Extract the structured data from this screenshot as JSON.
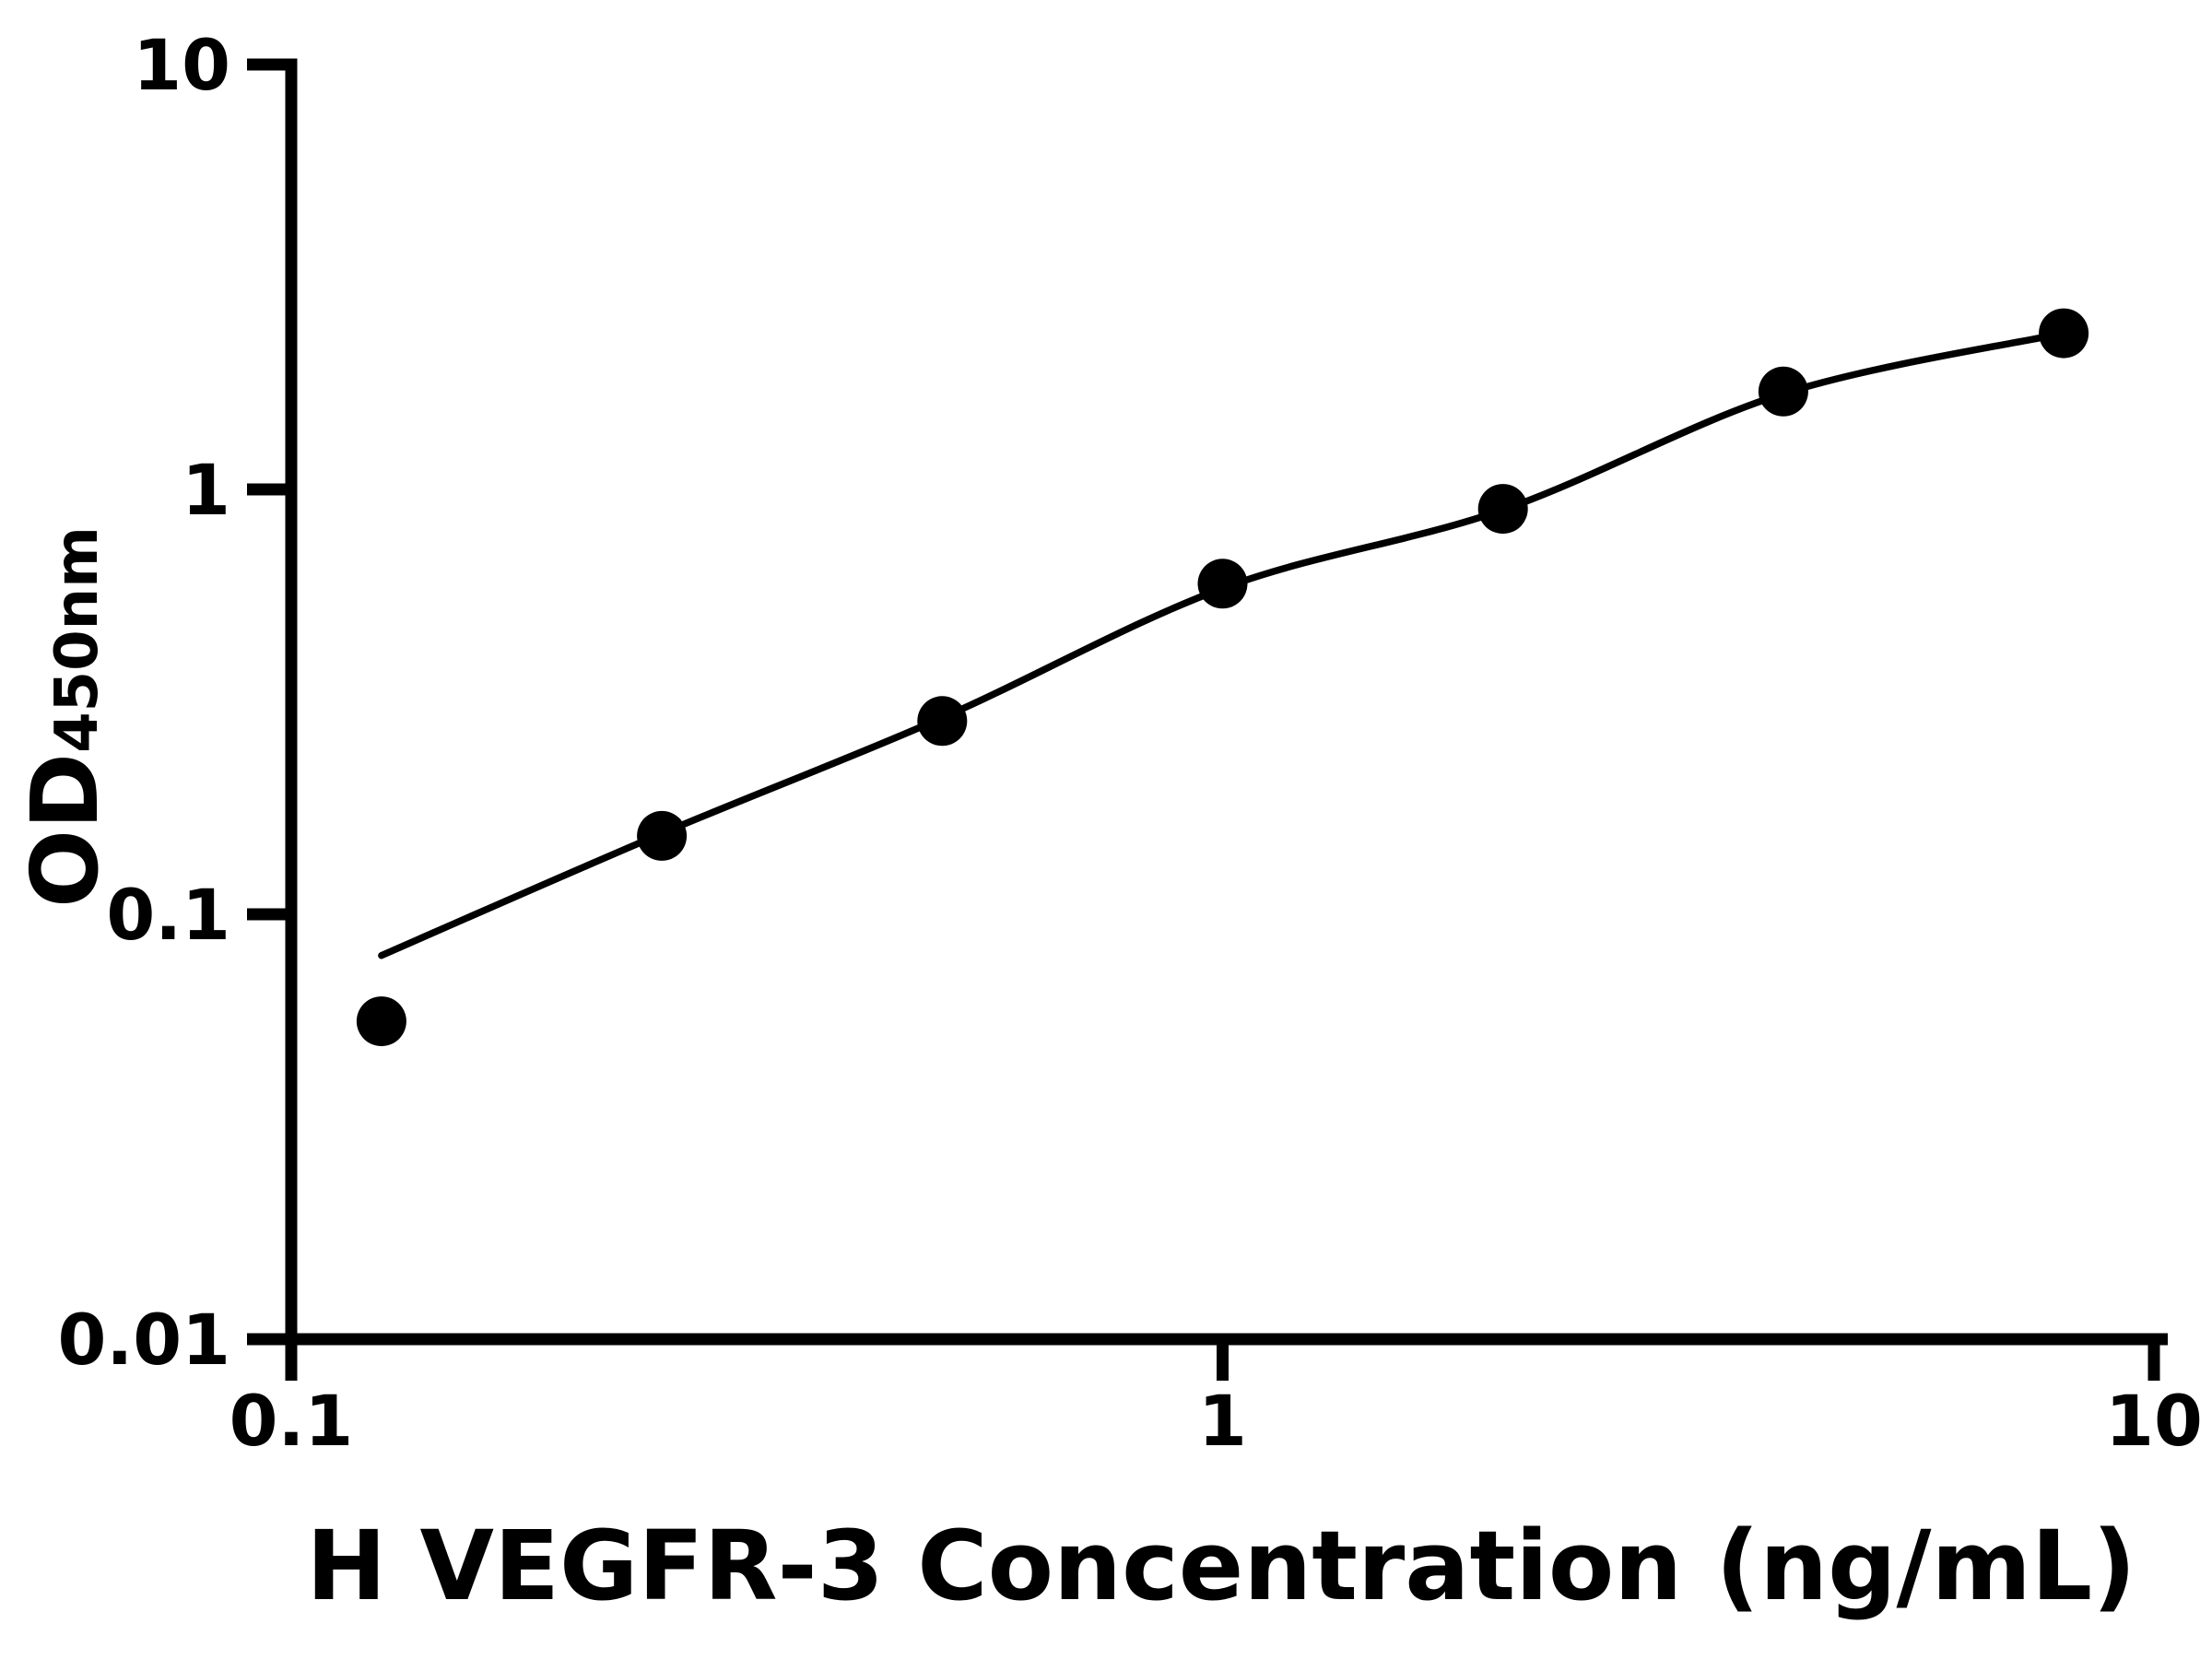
{
  "chart_data": {
    "type": "scatter",
    "title": "",
    "xlabel": "H VEGFR-3 Concentration (ng/mL)",
    "ylabel_main": "OD",
    "ylabel_sub": "450nm",
    "x_scale": "log",
    "y_scale": "log",
    "xlim": [
      0.1,
      10
    ],
    "ylim": [
      0.01,
      10
    ],
    "grid": false,
    "legend": null,
    "colors": {
      "foreground": "#000000",
      "background": "#ffffff"
    },
    "x_ticks": [
      {
        "value": 0.1,
        "label": "0.1"
      },
      {
        "value": 1,
        "label": "1"
      },
      {
        "value": 10,
        "label": "10"
      }
    ],
    "y_ticks": [
      {
        "value": 10,
        "label": "10"
      },
      {
        "value": 1,
        "label": "1"
      },
      {
        "value": 0.1,
        "label": "0.1"
      },
      {
        "value": 0.01,
        "label": "0.01"
      }
    ],
    "series": [
      {
        "name": "standard-curve-points",
        "marker": "circle",
        "color": "#000000",
        "points": [
          {
            "x": 0.125,
            "y": 0.056
          },
          {
            "x": 0.25,
            "y": 0.153
          },
          {
            "x": 0.5,
            "y": 0.285
          },
          {
            "x": 1,
            "y": 0.6
          },
          {
            "x": 2,
            "y": 0.9
          },
          {
            "x": 4,
            "y": 1.7
          },
          {
            "x": 8,
            "y": 2.33
          }
        ]
      }
    ],
    "trendline": {
      "name": "fitted-curve",
      "color": "#000000",
      "points": [
        {
          "x": 0.125,
          "y": 0.08
        },
        {
          "x": 0.25,
          "y": 0.155
        },
        {
          "x": 0.5,
          "y": 0.29
        },
        {
          "x": 1,
          "y": 0.585
        },
        {
          "x": 2,
          "y": 0.895
        },
        {
          "x": 4,
          "y": 1.68
        },
        {
          "x": 8,
          "y": 2.33
        }
      ]
    }
  }
}
